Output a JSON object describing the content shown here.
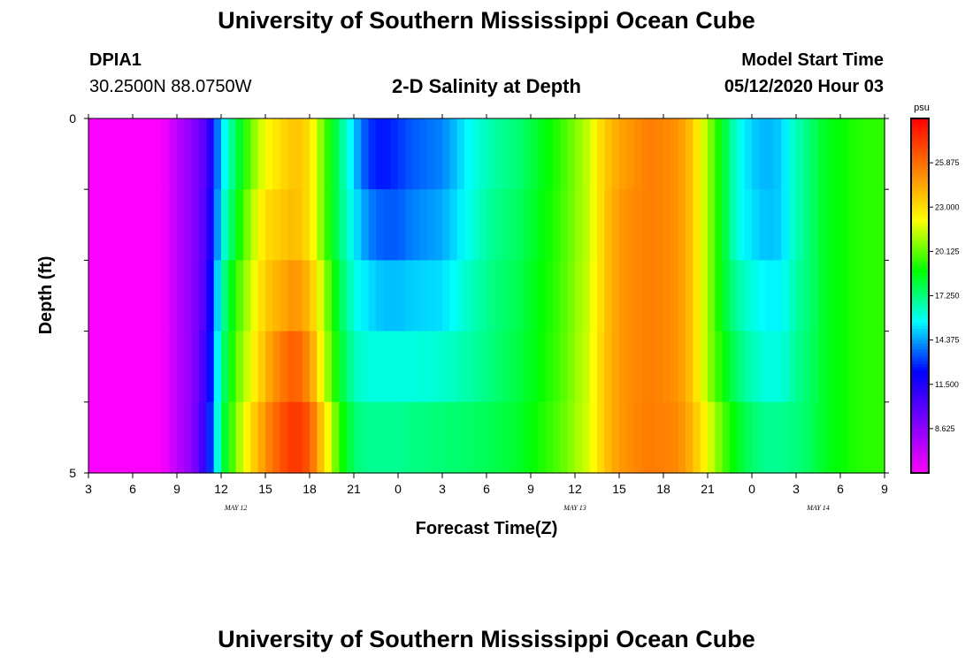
{
  "header": {
    "title_top": "University of Southern Mississippi Ocean Cube",
    "title_bottom": "University of Southern Mississippi Ocean Cube",
    "station_id": "DPIA1",
    "station_coords": "30.2500N 88.0750W",
    "plot_title": "2-D Salinity at Depth",
    "model_start_label": "Model Start Time",
    "model_start_value": "05/12/2020 Hour 03"
  },
  "chart_data": {
    "type": "heatmap",
    "title": "2-D Salinity at Depth",
    "xlabel": "Forecast Time(Z)",
    "ylabel": "Depth (ft)",
    "x_tick_labels": [
      "3",
      "6",
      "9",
      "12",
      "15",
      "18",
      "21",
      "0",
      "3",
      "6",
      "9",
      "12",
      "15",
      "18",
      "21",
      "0",
      "3",
      "6",
      "9"
    ],
    "x_hours_from_start": [
      0,
      3,
      6,
      9,
      12,
      15,
      18,
      21,
      24,
      27,
      30,
      33,
      36,
      39,
      42,
      45,
      48,
      51,
      54
    ],
    "x_range_hours": [
      0,
      54
    ],
    "date_labels": [
      {
        "label": "MAY 12",
        "at_hour": 10
      },
      {
        "label": "MAY 13",
        "at_hour": 33
      },
      {
        "label": "MAY 14",
        "at_hour": 49.5
      }
    ],
    "y_range": [
      0,
      5
    ],
    "y_tick_labels": [
      "0",
      "5"
    ],
    "depth_layers_ft": [
      0.5,
      1.5,
      2.5,
      3.5,
      4.5
    ],
    "colorbar": {
      "unit": "psu",
      "range": [
        5.75,
        28.75
      ],
      "tick_labels": [
        "8.625",
        "11.500",
        "14.375",
        "17.250",
        "20.125",
        "23.000",
        "25.875"
      ],
      "tick_values": [
        8.625,
        11.5,
        14.375,
        17.25,
        20.125,
        23.0,
        25.875
      ],
      "colors_low_to_high": [
        "#ff00ff",
        "#7f00ff",
        "#0000ff",
        "#00ffff",
        "#00ff00",
        "#ffff00",
        "#ff7f00",
        "#ff0000"
      ]
    },
    "salinity_profiles": {
      "hours": [
        0,
        5,
        6,
        7,
        8,
        9,
        10,
        11,
        12,
        13,
        14,
        15,
        16,
        17,
        18,
        19,
        20,
        21,
        22,
        24,
        26,
        27,
        28,
        29,
        30,
        32,
        34,
        35,
        36,
        38,
        40,
        41,
        42,
        43,
        44,
        45,
        46,
        47,
        48,
        49,
        50,
        52,
        54
      ],
      "layers": [
        [
          5.8,
          5.8,
          7.5,
          8.6,
          10.2,
          15.0,
          17.8,
          20.2,
          22.2,
          23.0,
          23.8,
          23.0,
          20.0,
          17.5,
          15.0,
          13.0,
          12.5,
          13.0,
          13.5,
          14.0,
          15.8,
          16.5,
          17.0,
          17.3,
          18.0,
          19.5,
          21.5,
          23.5,
          24.5,
          25.5,
          25.0,
          23.5,
          21.0,
          18.5,
          16.0,
          15.0,
          14.6,
          15.0,
          16.5,
          17.5,
          18.5,
          19.3,
          19.5
        ],
        [
          5.8,
          5.8,
          7.5,
          8.6,
          10.4,
          15.5,
          18.5,
          21.0,
          23.0,
          23.5,
          24.0,
          23.0,
          20.0,
          17.5,
          15.5,
          14.0,
          13.5,
          13.5,
          14.0,
          14.5,
          16.0,
          16.8,
          17.3,
          17.6,
          18.2,
          19.6,
          21.5,
          23.5,
          24.8,
          25.5,
          25.0,
          23.5,
          21.0,
          18.5,
          16.0,
          15.2,
          14.8,
          15.0,
          16.5,
          17.5,
          18.5,
          19.3,
          19.5
        ],
        [
          5.8,
          5.8,
          7.5,
          8.6,
          10.6,
          16.5,
          19.5,
          21.5,
          23.5,
          24.3,
          25.0,
          24.0,
          21.0,
          18.0,
          16.0,
          15.2,
          14.8,
          14.8,
          15.0,
          15.2,
          16.5,
          17.0,
          17.5,
          17.8,
          18.4,
          19.7,
          21.6,
          23.5,
          24.8,
          25.5,
          25.0,
          23.5,
          21.0,
          18.5,
          16.8,
          16.0,
          15.5,
          15.5,
          16.8,
          17.5,
          18.5,
          19.3,
          19.5
        ],
        [
          5.8,
          5.8,
          7.5,
          8.6,
          11.0,
          17.0,
          20.0,
          22.0,
          24.0,
          25.5,
          26.5,
          25.0,
          21.5,
          18.5,
          16.5,
          16.0,
          16.0,
          16.0,
          16.0,
          16.2,
          16.8,
          17.2,
          17.6,
          18.0,
          18.5,
          19.8,
          21.7,
          23.6,
          24.8,
          25.5,
          25.0,
          23.5,
          21.0,
          19.0,
          17.5,
          16.5,
          16.0,
          16.0,
          17.0,
          17.6,
          18.5,
          19.3,
          19.5
        ],
        [
          5.8,
          5.8,
          7.5,
          8.6,
          11.4,
          17.5,
          20.5,
          23.0,
          25.0,
          26.5,
          27.5,
          26.5,
          23.0,
          19.5,
          17.5,
          17.0,
          17.0,
          17.0,
          17.2,
          17.4,
          17.6,
          17.8,
          18.0,
          18.3,
          18.8,
          20.0,
          21.8,
          23.6,
          24.8,
          25.6,
          25.2,
          24.0,
          22.0,
          20.0,
          18.5,
          17.5,
          17.0,
          17.0,
          17.3,
          17.7,
          18.5,
          19.3,
          19.5
        ]
      ]
    }
  }
}
